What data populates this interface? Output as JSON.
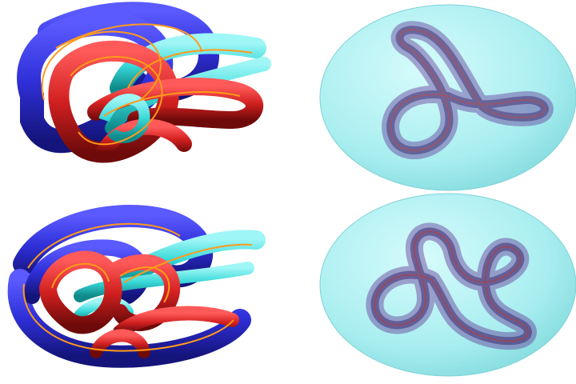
{
  "figure": {
    "panels": [
      {
        "id": "top-left",
        "subject": "knotted-tube-bundle-opaque"
      },
      {
        "id": "top-right",
        "subject": "knotted-tube-inside-translucent-ellipsoid"
      },
      {
        "id": "bottom-left",
        "subject": "knotted-tube-bundle-opaque"
      },
      {
        "id": "bottom-right",
        "subject": "knotted-tube-inside-translucent-ellipsoid"
      }
    ],
    "colors": {
      "blue": "#2f2fd8",
      "blue_dark": "#1a1a8a",
      "red": "#d22020",
      "red_dark": "#7a0f10",
      "cyan": "#39d9d9",
      "cyan_dark": "#129a9a",
      "orange_stripe": "#ff9a1a",
      "ellipsoid_fill": "#a9eef0",
      "ellipsoid_edge": "#7fd2d6",
      "inner_tube": "#6a4aa0",
      "inner_tube_dark": "#3f2a6e"
    }
  }
}
